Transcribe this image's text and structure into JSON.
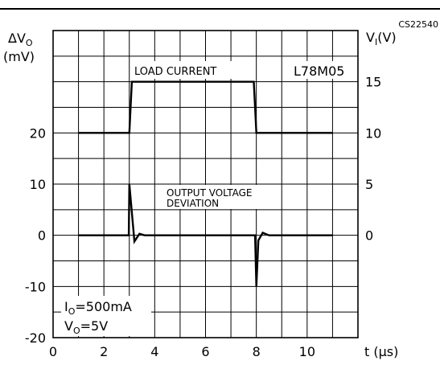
{
  "chart_data": {
    "type": "line",
    "code": "CS22540",
    "part": "L78M05",
    "x_axis": {
      "label": "t (μs)",
      "range": [
        0,
        12
      ],
      "ticks": [
        0,
        2,
        4,
        6,
        8,
        10
      ]
    },
    "y_left": {
      "label_line1": "ΔV",
      "label_sub": "O",
      "label_line2": "(mV)",
      "range": [
        -20,
        40
      ],
      "ticks": [
        -20,
        -10,
        0,
        10,
        20
      ]
    },
    "y_right": {
      "label_main": "V",
      "label_sub": "I",
      "label_unit": "(V)",
      "range": [
        -10,
        20
      ],
      "ticks": [
        0,
        5,
        10,
        15
      ]
    },
    "grid": true,
    "annotations": {
      "load": "LOAD CURRENT",
      "dev1": "OUTPUT VOLTAGE",
      "dev2": "DEVIATION",
      "io_main": "I",
      "io_sub": "O",
      "io_val": "=500mA",
      "vo_main": "V",
      "vo_sub": "O",
      "vo_val": "=5V"
    },
    "series": [
      {
        "axis": "right",
        "points": [
          [
            1,
            10
          ],
          [
            3,
            10
          ],
          [
            3.1,
            15
          ],
          [
            7.9,
            15
          ],
          [
            8,
            10
          ],
          [
            11,
            10
          ]
        ]
      },
      {
        "axis": "left",
        "points": [
          [
            1,
            0
          ],
          [
            2.98,
            0
          ],
          [
            3,
            10
          ],
          [
            3.2,
            -1.2
          ],
          [
            3.4,
            0.3
          ],
          [
            3.6,
            0
          ],
          [
            7.95,
            0
          ],
          [
            8,
            -10
          ],
          [
            8.08,
            -1
          ],
          [
            8.25,
            0.5
          ],
          [
            8.5,
            0
          ],
          [
            11,
            0
          ]
        ]
      }
    ]
  }
}
